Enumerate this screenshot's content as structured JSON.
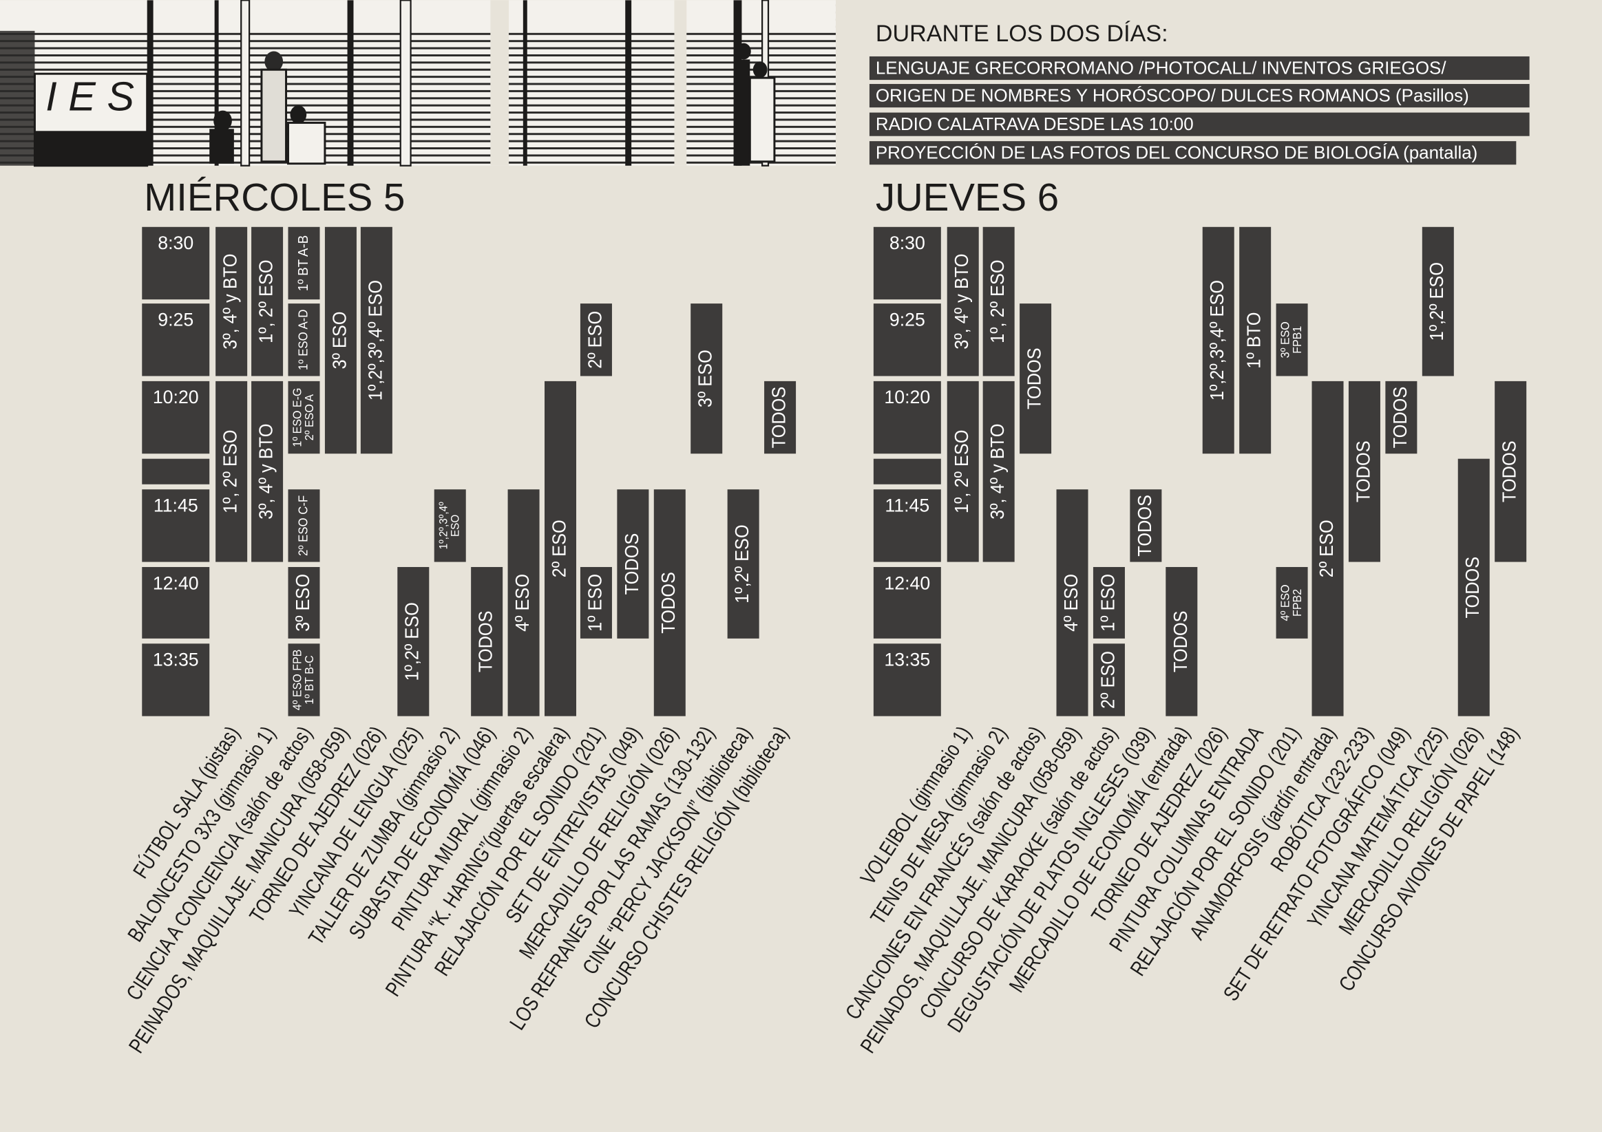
{
  "header": {
    "illustration_text": "I E S",
    "title": "DURANTE LOS DOS DÍAS:",
    "items": [
      "LENGUAJE GRECORROMANO /PHOTOCALL/ INVENTOS GRIEGOS/",
      "ORIGEN DE NOMBRES Y HORÓSCOPO/ DULCES ROMANOS (Pasillos)",
      "RADIO CALATRAVA DESDE LAS 10:00",
      "PROYECCIÓN DE LAS FOTOS DEL CONCURSO DE BIOLOGÍA (pantalla)"
    ]
  },
  "days": [
    {
      "title": "MIÉRCOLES 5",
      "times": [
        "8:30",
        "9:25",
        "10:20",
        "11:45",
        "12:40",
        "13:35"
      ],
      "columns": [
        {
          "activity": "FÚTBOL SALA (pistas)",
          "blocks": [
            [
              "3º, 4º y BTO"
            ],
            [
              "1º, 2º ESO"
            ]
          ]
        },
        {
          "activity": "BALONCESTO 3X3 (gimnasio 1)",
          "blocks": [
            [
              "1º, 2º ESO"
            ],
            [
              "3º, 4º y BTO"
            ]
          ]
        },
        {
          "activity": "CIENCIA A CONCIENCIA (salón de actos)",
          "blocks": [
            [
              "1º BT A-B"
            ],
            [
              "1º ESO A-D"
            ],
            [
              "1º ESO E-G",
              "2º ESO A"
            ],
            [
              "2º ESO C-F"
            ],
            [
              "3º ESO"
            ],
            [
              "4º ESO FPB",
              "1º BT B-C"
            ]
          ]
        },
        {
          "activity": "PEINADOS, MAQUILLAJE, MANICURA (058-059)",
          "blocks": [
            [
              "3º ESO"
            ]
          ]
        },
        {
          "activity": "TORNEO DE AJEDREZ (026)",
          "blocks": [
            [
              "1º,2º,3º,4º ESO"
            ]
          ]
        },
        {
          "activity": "YINCANA DE LENGUA (025)",
          "blocks": [
            [
              "1º,2º ESO"
            ]
          ]
        },
        {
          "activity": "TALLER DE ZUMBA (gimnasio 2)",
          "blocks": [
            [
              "1º,2º,3º,4º",
              "ESO"
            ]
          ]
        },
        {
          "activity": "SUBASTA DE ECONOMÍA (046)",
          "blocks": [
            [
              "TODOS"
            ]
          ]
        },
        {
          "activity": "PINTURA MURAL (gimnasio 2)",
          "blocks": [
            [
              "4º ESO"
            ]
          ]
        },
        {
          "activity": "PINTURA “K. HARING”(puertas escalera)",
          "blocks": [
            [
              "2º ESO"
            ]
          ]
        },
        {
          "activity": "RELAJACIÓN POR EL SONIDO (201)",
          "blocks": [
            [
              "2º ESO"
            ],
            [
              "1º ESO"
            ]
          ]
        },
        {
          "activity": "SET DE ENTREVISTAS (049)",
          "blocks": [
            [
              "TODOS"
            ]
          ]
        },
        {
          "activity": "MERCADILLO DE RELIGIÓN (026)",
          "blocks": [
            [
              "TODOS"
            ]
          ]
        },
        {
          "activity": "LOS REFRANES POR LAS RAMAS (130-132)",
          "blocks": [
            [
              "3º ESO"
            ]
          ]
        },
        {
          "activity": "CINE “PERCY JACKSON” (biblioteca)",
          "blocks": [
            [
              "1º,2º ESO"
            ]
          ]
        },
        {
          "activity": "CONCURSO CHISTES RELIGIÓN (biblioteca)",
          "blocks": [
            [
              "TODOS"
            ]
          ]
        }
      ]
    },
    {
      "title": "JUEVES 6",
      "times": [
        "8:30",
        "9:25",
        "10:20",
        "11:45",
        "12:40",
        "13:35"
      ],
      "columns": [
        {
          "activity": "VOLEIBOL (gimnasio 1)",
          "blocks": [
            [
              "3º, 4º y BTO"
            ],
            [
              "1º, 2º ESO"
            ]
          ]
        },
        {
          "activity": "TENIS DE MESA (gimnasio 2)",
          "blocks": [
            [
              "1º, 2º ESO"
            ],
            [
              "3º, 4º y BTO"
            ]
          ]
        },
        {
          "activity": "CANCIONES EN FRANCÉS (salón de actos)",
          "blocks": [
            [
              "TODOS"
            ]
          ]
        },
        {
          "activity": "PEINADOS, MAQUILLAJE, MANICURA (058-059)",
          "blocks": [
            [
              "4º ESO"
            ]
          ]
        },
        {
          "activity": "CONCURSO DE KARAOKE (salón de actos)",
          "blocks": [
            [
              "1º ESO"
            ],
            [
              "2º ESO"
            ]
          ]
        },
        {
          "activity": "DEGUSTACIÓN DE PLATOS INGLESES (039)",
          "blocks": [
            [
              "TODOS"
            ]
          ]
        },
        {
          "activity": "MERCADILLO DE ECONOMÍA (entrada)",
          "blocks": [
            [
              "TODOS"
            ]
          ]
        },
        {
          "activity": "TORNEO DE AJEDREZ (026)",
          "blocks": [
            [
              "1º,2º,3º,4º ESO"
            ]
          ]
        },
        {
          "activity": "PINTURA COLUMNAS ENTRADA",
          "blocks": [
            [
              "1º BTO"
            ]
          ]
        },
        {
          "activity": "RELAJACIÓN POR EL SONIDO (201)",
          "blocks": [
            [
              "3º ESO",
              "FPB1"
            ],
            [
              "4º ESO",
              "FPB2"
            ]
          ]
        },
        {
          "activity": "ANAMORFOSIS (jardín entrada)",
          "blocks": [
            [
              "2º ESO"
            ]
          ]
        },
        {
          "activity": "ROBÓTICA (232-233)",
          "blocks": [
            [
              "TODOS"
            ]
          ]
        },
        {
          "activity": "SET DE RETRATO FOTOGRÁFICO (049)",
          "blocks": [
            [
              "TODOS"
            ]
          ]
        },
        {
          "activity": "YINCANA MATEMÁTICA (225)",
          "blocks": [
            [
              "1º,2º ESO"
            ]
          ]
        },
        {
          "activity": "MERCADILLO RELIGIÓN (026)",
          "blocks": [
            [
              "TODOS"
            ]
          ]
        },
        {
          "activity": "CONCURSO AVIONES DE PAPEL (148)",
          "blocks": [
            [
              "TODOS"
            ]
          ]
        }
      ]
    }
  ]
}
